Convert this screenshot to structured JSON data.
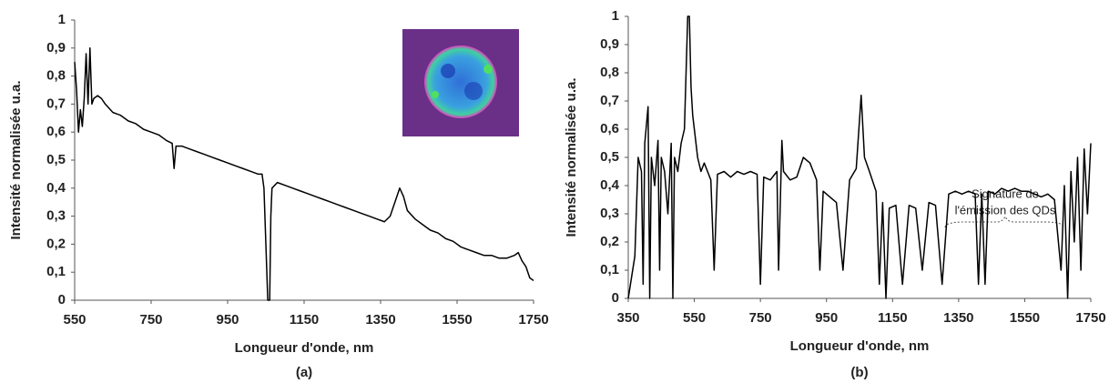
{
  "chart_data": [
    {
      "type": "line",
      "color": "#000000",
      "x_label": "Longueur d'onde, nm",
      "y_label": "Intensité normalisée u.a.",
      "caption": "(a)",
      "xlim": [
        550,
        1750
      ],
      "xticks": [
        550,
        750,
        950,
        1150,
        1350,
        1550,
        1750
      ],
      "ylim": [
        0,
        1
      ],
      "yticks": [
        0,
        {
          "value": 0.1,
          "label": "0,1"
        },
        {
          "value": 0.2,
          "label": "0,2"
        },
        {
          "value": 0.3,
          "label": "0,3"
        },
        {
          "value": 0.4,
          "label": "0,4"
        },
        {
          "value": 0.5,
          "label": "0,5"
        },
        {
          "value": 0.6,
          "label": "0,6"
        },
        {
          "value": 0.7,
          "label": "0,7"
        },
        {
          "value": 0.8,
          "label": "0,8"
        },
        {
          "value": 0.9,
          "label": "0,9"
        },
        1
      ],
      "x": [
        550,
        555,
        560,
        565,
        570,
        575,
        580,
        585,
        590,
        595,
        600,
        610,
        620,
        630,
        650,
        670,
        690,
        710,
        730,
        750,
        770,
        790,
        805,
        810,
        815,
        830,
        850,
        870,
        890,
        910,
        930,
        950,
        970,
        990,
        1010,
        1030,
        1040,
        1045,
        1050,
        1055,
        1060,
        1063,
        1066,
        1080,
        1100,
        1120,
        1140,
        1160,
        1180,
        1200,
        1220,
        1240,
        1260,
        1280,
        1300,
        1320,
        1340,
        1360,
        1375,
        1390,
        1400,
        1410,
        1420,
        1440,
        1460,
        1480,
        1500,
        1520,
        1540,
        1560,
        1580,
        1600,
        1620,
        1640,
        1660,
        1680,
        1700,
        1710,
        1720,
        1730,
        1740,
        1750
      ],
      "values": [
        0.85,
        0.75,
        0.6,
        0.68,
        0.62,
        0.72,
        0.88,
        0.7,
        0.9,
        0.7,
        0.72,
        0.73,
        0.72,
        0.7,
        0.67,
        0.66,
        0.64,
        0.63,
        0.61,
        0.6,
        0.59,
        0.57,
        0.56,
        0.47,
        0.55,
        0.55,
        0.54,
        0.53,
        0.52,
        0.51,
        0.5,
        0.49,
        0.48,
        0.47,
        0.46,
        0.45,
        0.45,
        0.4,
        0.2,
        0,
        0,
        0.3,
        0.4,
        0.42,
        0.41,
        0.4,
        0.39,
        0.38,
        0.37,
        0.36,
        0.35,
        0.34,
        0.33,
        0.32,
        0.31,
        0.3,
        0.29,
        0.28,
        0.3,
        0.36,
        0.4,
        0.37,
        0.32,
        0.29,
        0.27,
        0.25,
        0.24,
        0.22,
        0.21,
        0.19,
        0.18,
        0.17,
        0.16,
        0.16,
        0.15,
        0.15,
        0.16,
        0.17,
        0.14,
        0.12,
        0.08,
        0.07
      ]
    },
    {
      "type": "line",
      "color": "#000000",
      "x_label": "Longueur d'onde, nm",
      "y_label": "Intensité normalisée u.a.",
      "caption": "(b)",
      "annotation": [
        "Signature de",
        "l'émission des QDs"
      ],
      "xlim": [
        350,
        1750
      ],
      "xticks": [
        350,
        550,
        750,
        950,
        1150,
        1350,
        1550,
        1750
      ],
      "ylim": [
        0,
        1
      ],
      "yticks": [
        0,
        {
          "value": 0.1,
          "label": "0,1"
        },
        {
          "value": 0.2,
          "label": "0,2"
        },
        {
          "value": 0.3,
          "label": "0,3"
        },
        {
          "value": 0.4,
          "label": "0,4"
        },
        {
          "value": 0.5,
          "label": "0,5"
        },
        {
          "value": 0.6,
          "label": "0,6"
        },
        {
          "value": 0.7,
          "label": "0,7"
        },
        {
          "value": 0.8,
          "label": "0,8"
        },
        {
          "value": 0.9,
          "label": "0,9"
        },
        1
      ],
      "x": [
        350,
        370,
        380,
        390,
        395,
        400,
        410,
        415,
        420,
        430,
        440,
        445,
        450,
        460,
        470,
        480,
        485,
        490,
        500,
        510,
        520,
        525,
        530,
        535,
        540,
        545,
        550,
        560,
        570,
        580,
        590,
        600,
        610,
        620,
        640,
        660,
        680,
        700,
        720,
        740,
        750,
        760,
        780,
        800,
        805,
        815,
        820,
        840,
        860,
        880,
        900,
        920,
        930,
        940,
        960,
        980,
        1000,
        1020,
        1040,
        1055,
        1065,
        1080,
        1100,
        1110,
        1120,
        1130,
        1140,
        1160,
        1180,
        1200,
        1220,
        1240,
        1260,
        1280,
        1300,
        1320,
        1340,
        1360,
        1380,
        1400,
        1410,
        1420,
        1430,
        1440,
        1460,
        1480,
        1500,
        1520,
        1540,
        1560,
        1580,
        1600,
        1620,
        1640,
        1660,
        1670,
        1680,
        1690,
        1700,
        1710,
        1720,
        1730,
        1740,
        1750
      ],
      "values": [
        0,
        0.15,
        0.5,
        0.45,
        0.05,
        0.55,
        0.68,
        0,
        0.5,
        0.4,
        0.56,
        0.1,
        0.5,
        0.45,
        0.3,
        0.55,
        0,
        0.5,
        0.45,
        0.55,
        0.6,
        0.8,
        1,
        1,
        0.75,
        0.65,
        0.6,
        0.5,
        0.45,
        0.48,
        0.45,
        0.42,
        0.1,
        0.44,
        0.45,
        0.43,
        0.45,
        0.44,
        0.45,
        0.44,
        0.05,
        0.43,
        0.42,
        0.45,
        0.1,
        0.56,
        0.45,
        0.42,
        0.43,
        0.5,
        0.48,
        0.42,
        0.1,
        0.38,
        0.36,
        0.34,
        0.1,
        0.42,
        0.46,
        0.72,
        0.5,
        0.45,
        0.38,
        0.05,
        0.34,
        0,
        0.32,
        0.33,
        0.05,
        0.33,
        0.32,
        0.1,
        0.34,
        0.33,
        0.05,
        0.37,
        0.38,
        0.37,
        0.38,
        0.37,
        0.05,
        0.37,
        0.05,
        0.38,
        0.37,
        0.39,
        0.38,
        0.39,
        0.38,
        0.38,
        0.37,
        0.36,
        0.37,
        0.35,
        0.1,
        0.4,
        0,
        0.45,
        0.2,
        0.5,
        0.1,
        0.53,
        0.3,
        0.55
      ]
    }
  ]
}
